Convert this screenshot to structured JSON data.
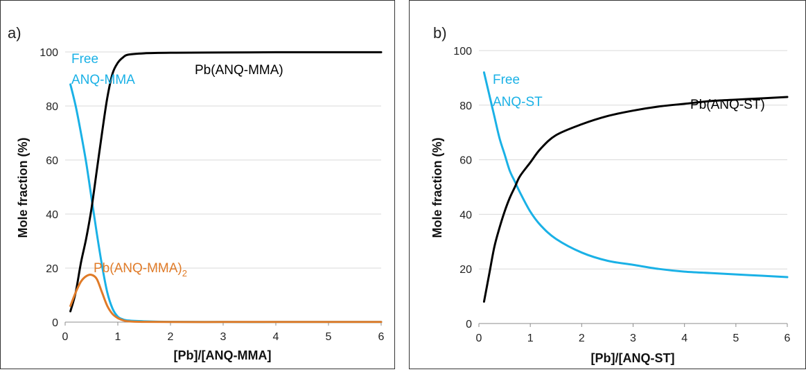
{
  "chart_data": [
    {
      "type": "line",
      "panel_label": "a)",
      "xlabel": "[Pb]/[ANQ-MMA]",
      "ylabel": "Mole fraction (%)",
      "xlim": [
        0,
        6
      ],
      "ylim": [
        0,
        100
      ],
      "x_ticks": [
        "0",
        "1",
        "2",
        "3",
        "4",
        "5",
        "6"
      ],
      "y_ticks": [
        "0",
        "20",
        "40",
        "60",
        "80",
        "100"
      ],
      "grid": true,
      "series": [
        {
          "name": "Free ANQ-MMA",
          "label_lines": [
            "Free",
            "ANQ-MMA"
          ],
          "color": "#1ab1e6",
          "points": [
            [
              0.1,
              88
            ],
            [
              0.2,
              80
            ],
            [
              0.3,
              70
            ],
            [
              0.4,
              59
            ],
            [
              0.5,
              46
            ],
            [
              0.6,
              33
            ],
            [
              0.7,
              21
            ],
            [
              0.8,
              11
            ],
            [
              0.9,
              5
            ],
            [
              1.0,
              2
            ],
            [
              1.1,
              1
            ],
            [
              1.2,
              0.6
            ],
            [
              1.5,
              0.3
            ],
            [
              2.0,
              0.1
            ],
            [
              3.0,
              0.05
            ],
            [
              4.0,
              0.05
            ],
            [
              5.0,
              0.05
            ],
            [
              6.0,
              0.05
            ]
          ]
        },
        {
          "name": "Pb(ANQ-MMA)",
          "label_lines": [
            "Pb(ANQ-MMA)"
          ],
          "color": "#000000",
          "points": [
            [
              0.1,
              4
            ],
            [
              0.2,
              11
            ],
            [
              0.3,
              22
            ],
            [
              0.4,
              31
            ],
            [
              0.5,
              42
            ],
            [
              0.6,
              56
            ],
            [
              0.7,
              70
            ],
            [
              0.8,
              83
            ],
            [
              0.9,
              92
            ],
            [
              1.0,
              96
            ],
            [
              1.1,
              98
            ],
            [
              1.2,
              99
            ],
            [
              1.5,
              99.5
            ],
            [
              2.0,
              99.7
            ],
            [
              3.0,
              99.8
            ],
            [
              4.0,
              99.9
            ],
            [
              5.0,
              99.9
            ],
            [
              6.0,
              99.9
            ]
          ]
        },
        {
          "name": "Pb(ANQ-MMA)2",
          "label_lines": [
            "Pb(ANQ-MMA)"
          ],
          "label_subscript": "2",
          "color": "#e07b28",
          "points": [
            [
              0.1,
              6
            ],
            [
              0.2,
              11
            ],
            [
              0.3,
              15
            ],
            [
              0.4,
              17
            ],
            [
              0.5,
              17.5
            ],
            [
              0.6,
              16
            ],
            [
              0.7,
              11
            ],
            [
              0.8,
              6
            ],
            [
              0.9,
              3
            ],
            [
              1.0,
              1.5
            ],
            [
              1.1,
              0.7
            ],
            [
              1.2,
              0.3
            ],
            [
              1.5,
              0.1
            ],
            [
              2.0,
              0.05
            ],
            [
              3.0,
              0.05
            ],
            [
              4.0,
              0.05
            ],
            [
              5.0,
              0.05
            ],
            [
              6.0,
              0.05
            ]
          ]
        }
      ]
    },
    {
      "type": "line",
      "panel_label": "b)",
      "xlabel": "[Pb]/[ANQ-ST]",
      "ylabel": "Mole fraction (%)",
      "xlim": [
        0,
        6
      ],
      "ylim": [
        0,
        100
      ],
      "x_ticks": [
        "0",
        "1",
        "2",
        "3",
        "4",
        "5",
        "6"
      ],
      "y_ticks": [
        "0",
        "20",
        "40",
        "60",
        "80",
        "100"
      ],
      "grid": true,
      "series": [
        {
          "name": "Free ANQ-ST",
          "label_lines": [
            "Free",
            "ANQ-ST"
          ],
          "color": "#1ab1e6",
          "points": [
            [
              0.1,
              92
            ],
            [
              0.2,
              84
            ],
            [
              0.3,
              76
            ],
            [
              0.4,
              68
            ],
            [
              0.5,
              62
            ],
            [
              0.6,
              56
            ],
            [
              0.7,
              52
            ],
            [
              0.8,
              48
            ],
            [
              1.0,
              41
            ],
            [
              1.2,
              36
            ],
            [
              1.5,
              31
            ],
            [
              2.0,
              26
            ],
            [
              2.5,
              23
            ],
            [
              3.0,
              21.5
            ],
            [
              3.5,
              20
            ],
            [
              4.0,
              19
            ],
            [
              4.5,
              18.5
            ],
            [
              5.0,
              18
            ],
            [
              5.5,
              17.5
            ],
            [
              6.0,
              17
            ]
          ]
        },
        {
          "name": "Pb(ANQ-ST)",
          "label_lines": [
            "Pb(ANQ-ST)"
          ],
          "color": "#000000",
          "points": [
            [
              0.1,
              8
            ],
            [
              0.2,
              18
            ],
            [
              0.3,
              28
            ],
            [
              0.4,
              35
            ],
            [
              0.5,
              41
            ],
            [
              0.6,
              46
            ],
            [
              0.7,
              50
            ],
            [
              0.8,
              54
            ],
            [
              1.0,
              59
            ],
            [
              1.2,
              64
            ],
            [
              1.5,
              69
            ],
            [
              2.0,
              73
            ],
            [
              2.5,
              76
            ],
            [
              3.0,
              78
            ],
            [
              3.5,
              79.5
            ],
            [
              4.0,
              80.5
            ],
            [
              4.5,
              81.5
            ],
            [
              5.0,
              82
            ],
            [
              5.5,
              82.5
            ],
            [
              6.0,
              83
            ]
          ]
        }
      ]
    }
  ]
}
